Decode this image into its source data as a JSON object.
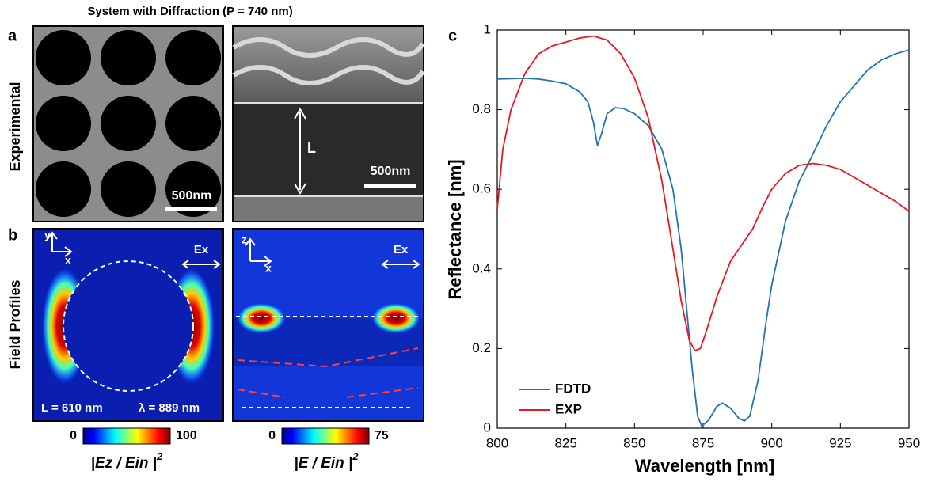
{
  "figure_title": "System with Diffraction (P = 740 nm)",
  "panels": {
    "a": "a",
    "b": "b",
    "c": "c"
  },
  "row_labels": [
    "Experimental",
    "Field Profiles"
  ],
  "experimental": {
    "scale_bars": [
      "500nm",
      "500nm"
    ],
    "length_label": "L"
  },
  "field_profiles": {
    "axes": [
      [
        "y",
        "x",
        "Ex"
      ],
      [
        "z",
        "x",
        "Ex"
      ]
    ],
    "parameters": [
      "L = 610 nm",
      "λ = 889 nm"
    ],
    "colorbars": [
      {
        "min": 0,
        "max": 100,
        "label": "|Ez / Ein |",
        "exponent": "2"
      },
      {
        "min": 0,
        "max": 75,
        "label": "|E / Ein |",
        "exponent": "2"
      }
    ]
  },
  "chart_data": {
    "type": "line",
    "xlabel": "Wavelength [nm]",
    "ylabel": "Reflectance [nm]",
    "xlim": [
      800,
      950
    ],
    "xticks": [
      800,
      825,
      850,
      875,
      900,
      925,
      950
    ],
    "ylim": [
      0,
      1
    ],
    "yticks": [
      0,
      0.2,
      0.4,
      0.6,
      0.8,
      1
    ],
    "grid": false,
    "legend": "lower left",
    "series": [
      {
        "name": "FDTD",
        "color": "#2272b4",
        "x": [
          800,
          805,
          810,
          815,
          820,
          825,
          830,
          833,
          835,
          836.5,
          838,
          840,
          843,
          846,
          850,
          855,
          860,
          864,
          867,
          869,
          871,
          873,
          874.5,
          877,
          880,
          882,
          885,
          888,
          890,
          892,
          895,
          898,
          900,
          905,
          910,
          913,
          920,
          925,
          930,
          935,
          940,
          945,
          950
        ],
        "values": [
          0.877,
          0.878,
          0.879,
          0.877,
          0.872,
          0.865,
          0.845,
          0.82,
          0.77,
          0.71,
          0.74,
          0.79,
          0.805,
          0.803,
          0.79,
          0.76,
          0.7,
          0.6,
          0.45,
          0.3,
          0.15,
          0.03,
          0.005,
          0.02,
          0.055,
          0.063,
          0.05,
          0.025,
          0.018,
          0.03,
          0.12,
          0.27,
          0.36,
          0.52,
          0.62,
          0.66,
          0.76,
          0.82,
          0.86,
          0.9,
          0.925,
          0.94,
          0.95
        ]
      },
      {
        "name": "EXP",
        "color": "#e8191e",
        "x": [
          800,
          802,
          805,
          810,
          815,
          820,
          825,
          830,
          835,
          840,
          845,
          850,
          855,
          860,
          864,
          867,
          870,
          872,
          874,
          876,
          880,
          885,
          890,
          893,
          897,
          900,
          905,
          910,
          915,
          920,
          925,
          930,
          935,
          940,
          945,
          950
        ],
        "values": [
          0.55,
          0.7,
          0.8,
          0.89,
          0.94,
          0.96,
          0.97,
          0.98,
          0.985,
          0.975,
          0.94,
          0.88,
          0.78,
          0.62,
          0.45,
          0.32,
          0.22,
          0.195,
          0.2,
          0.24,
          0.33,
          0.42,
          0.47,
          0.5,
          0.56,
          0.6,
          0.64,
          0.66,
          0.665,
          0.66,
          0.65,
          0.63,
          0.61,
          0.59,
          0.57,
          0.545
        ]
      }
    ]
  }
}
